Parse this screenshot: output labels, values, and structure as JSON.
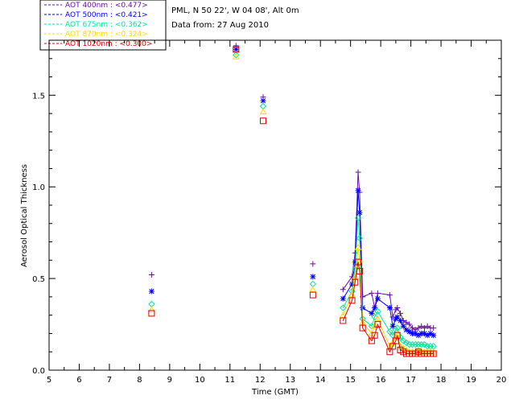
{
  "chart_data": {
    "type": "scatter",
    "title_lines": [
      "PML, N 50 22', W 04 08', Alt 0m",
      "Data from: 27 Aug 2010"
    ],
    "xlabel": "Time (GMT)",
    "ylabel": "Aerosol Optical Thickness",
    "xlim": [
      5,
      20
    ],
    "ylim": [
      0,
      1.8
    ],
    "x_ticks": [
      "5",
      "6",
      "7",
      "8",
      "9",
      "10",
      "11",
      "12",
      "13",
      "14",
      "15",
      "16",
      "17",
      "18",
      "19",
      "20"
    ],
    "y_ticks": [
      "0.0",
      "0.5",
      "1.0",
      "1.5"
    ],
    "legend_position": "top-left, outside plot",
    "series": [
      {
        "name": "AOT  400nm : <0.477>",
        "color": "#6a0dad",
        "marker": "plus",
        "points": [
          [
            8.4,
            0.52
          ],
          [
            11.2,
            1.77
          ],
          [
            12.1,
            1.49
          ],
          [
            13.75,
            0.58
          ],
          [
            14.75,
            0.44
          ],
          [
            15.05,
            0.51
          ],
          [
            15.15,
            0.64
          ],
          [
            15.25,
            1.08
          ],
          [
            15.3,
            0.97
          ],
          [
            15.4,
            0.4
          ],
          [
            15.7,
            0.42
          ],
          [
            15.8,
            0.34
          ],
          [
            15.9,
            0.42
          ],
          [
            16.3,
            0.41
          ],
          [
            16.4,
            0.29
          ],
          [
            16.5,
            0.33
          ],
          [
            16.55,
            0.34
          ],
          [
            16.65,
            0.31
          ],
          [
            16.75,
            0.27
          ],
          [
            16.85,
            0.26
          ],
          [
            16.95,
            0.25
          ],
          [
            17.05,
            0.23
          ],
          [
            17.15,
            0.22
          ],
          [
            17.25,
            0.23
          ],
          [
            17.35,
            0.24
          ],
          [
            17.45,
            0.23
          ],
          [
            17.55,
            0.24
          ],
          [
            17.65,
            0.23
          ],
          [
            17.75,
            0.23
          ]
        ],
        "line_from_index": 4
      },
      {
        "name": "AOT  500nm : <0.421>",
        "color": "#0000ff",
        "marker": "star",
        "points": [
          [
            8.4,
            0.43
          ],
          [
            11.2,
            1.75
          ],
          [
            12.1,
            1.47
          ],
          [
            13.75,
            0.51
          ],
          [
            14.75,
            0.39
          ],
          [
            15.05,
            0.47
          ],
          [
            15.15,
            0.59
          ],
          [
            15.25,
            0.98
          ],
          [
            15.3,
            0.86
          ],
          [
            15.4,
            0.34
          ],
          [
            15.7,
            0.31
          ],
          [
            15.8,
            0.34
          ],
          [
            15.9,
            0.39
          ],
          [
            16.3,
            0.34
          ],
          [
            16.4,
            0.24
          ],
          [
            16.5,
            0.28
          ],
          [
            16.55,
            0.29
          ],
          [
            16.65,
            0.27
          ],
          [
            16.75,
            0.24
          ],
          [
            16.85,
            0.22
          ],
          [
            16.95,
            0.21
          ],
          [
            17.05,
            0.2
          ],
          [
            17.15,
            0.2
          ],
          [
            17.25,
            0.19
          ],
          [
            17.35,
            0.2
          ],
          [
            17.45,
            0.2
          ],
          [
            17.55,
            0.19
          ],
          [
            17.65,
            0.2
          ],
          [
            17.75,
            0.19
          ]
        ],
        "line_from_index": 4
      },
      {
        "name": "AOT  675nm : <0.362>",
        "color": "#00e6a0",
        "marker": "diamond",
        "points": [
          [
            8.4,
            0.36
          ],
          [
            11.2,
            1.72
          ],
          [
            12.1,
            1.44
          ],
          [
            13.75,
            0.47
          ],
          [
            14.75,
            0.34
          ],
          [
            15.05,
            0.43
          ],
          [
            15.15,
            0.55
          ],
          [
            15.25,
            0.83
          ],
          [
            15.3,
            0.72
          ],
          [
            15.4,
            0.28
          ],
          [
            15.7,
            0.24
          ],
          [
            15.8,
            0.29
          ],
          [
            15.9,
            0.32
          ],
          [
            16.3,
            0.21
          ],
          [
            16.4,
            0.19
          ],
          [
            16.5,
            0.22
          ],
          [
            16.55,
            0.23
          ],
          [
            16.65,
            0.18
          ],
          [
            16.75,
            0.16
          ],
          [
            16.85,
            0.15
          ],
          [
            16.95,
            0.14
          ],
          [
            17.05,
            0.14
          ],
          [
            17.15,
            0.14
          ],
          [
            17.25,
            0.14
          ],
          [
            17.35,
            0.14
          ],
          [
            17.45,
            0.14
          ],
          [
            17.55,
            0.13
          ],
          [
            17.65,
            0.13
          ],
          [
            17.75,
            0.13
          ]
        ],
        "line_from_index": 4
      },
      {
        "name": "AOT  870nm : <0.324>",
        "color": "#ffd700",
        "marker": "triangle",
        "points": [
          [
            8.4,
            0.33
          ],
          [
            11.2,
            1.71
          ],
          [
            12.1,
            1.41
          ],
          [
            13.75,
            0.44
          ],
          [
            14.75,
            0.3
          ],
          [
            15.05,
            0.41
          ],
          [
            15.15,
            0.51
          ],
          [
            15.25,
            0.67
          ],
          [
            15.3,
            0.6
          ],
          [
            15.4,
            0.26
          ],
          [
            15.7,
            0.2
          ],
          [
            15.8,
            0.24
          ],
          [
            15.9,
            0.28
          ],
          [
            16.3,
            0.13
          ],
          [
            16.4,
            0.15
          ],
          [
            16.5,
            0.18
          ],
          [
            16.55,
            0.2
          ],
          [
            16.65,
            0.13
          ],
          [
            16.75,
            0.12
          ],
          [
            16.85,
            0.11
          ],
          [
            16.95,
            0.1
          ],
          [
            17.05,
            0.1
          ],
          [
            17.15,
            0.1
          ],
          [
            17.25,
            0.11
          ],
          [
            17.35,
            0.1
          ],
          [
            17.45,
            0.1
          ],
          [
            17.55,
            0.1
          ],
          [
            17.65,
            0.1
          ],
          [
            17.75,
            0.1
          ]
        ],
        "line_from_index": 4
      },
      {
        "name": "AOT 1020nm : <0.300>",
        "color": "#e00000",
        "marker": "square",
        "points": [
          [
            8.4,
            0.31
          ],
          [
            11.2,
            1.75
          ],
          [
            12.1,
            1.36
          ],
          [
            13.75,
            0.41
          ],
          [
            14.75,
            0.27
          ],
          [
            15.05,
            0.38
          ],
          [
            15.15,
            0.48
          ],
          [
            15.25,
            0.59
          ],
          [
            15.3,
            0.54
          ],
          [
            15.4,
            0.23
          ],
          [
            15.7,
            0.16
          ],
          [
            15.8,
            0.19
          ],
          [
            15.9,
            0.25
          ],
          [
            16.3,
            0.1
          ],
          [
            16.4,
            0.13
          ],
          [
            16.5,
            0.16
          ],
          [
            16.55,
            0.19
          ],
          [
            16.65,
            0.11
          ],
          [
            16.75,
            0.1
          ],
          [
            16.85,
            0.09
          ],
          [
            16.95,
            0.09
          ],
          [
            17.05,
            0.09
          ],
          [
            17.15,
            0.09
          ],
          [
            17.25,
            0.1
          ],
          [
            17.35,
            0.09
          ],
          [
            17.45,
            0.09
          ],
          [
            17.55,
            0.09
          ],
          [
            17.65,
            0.09
          ],
          [
            17.75,
            0.09
          ]
        ],
        "line_from_index": 4
      }
    ]
  }
}
